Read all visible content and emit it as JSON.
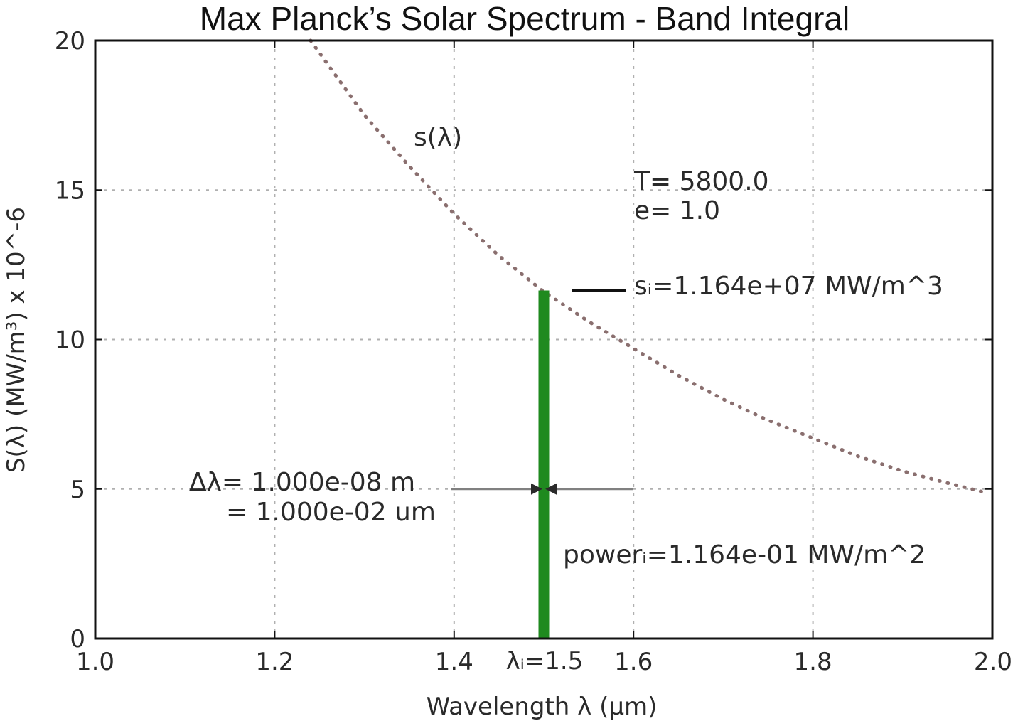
{
  "title": "Max Planck’s Solar Spectrum - Band Integral",
  "colors": {
    "curve": "#8a6f6f",
    "band": "#1f8a1f",
    "arrow": "#808080",
    "grid": "#b0b0b0"
  },
  "chart_data": {
    "type": "line",
    "title": "Max Planck’s Solar Spectrum - Band Integral",
    "xlabel": "Wavelength λ (μm)",
    "ylabel": "S(λ) (MW/m³) x 10^-6",
    "xlim": [
      1.0,
      2.0
    ],
    "ylim": [
      0,
      20
    ],
    "x_ticks": [
      1.0,
      1.2,
      1.4,
      1.6,
      1.8,
      2.0
    ],
    "x_tick_labels": [
      "1.0",
      "1.2",
      "1.4",
      "1.6",
      "1.8",
      "2.0"
    ],
    "y_ticks": [
      0,
      5,
      10,
      15,
      20
    ],
    "y_tick_labels": [
      "0",
      "5",
      "10",
      "15",
      "20"
    ],
    "grid": true,
    "temperature_K": 5800.0,
    "emissivity": 1.0,
    "series": [
      {
        "label": "s(λ)",
        "style": "dotted",
        "x": [
          1.24,
          1.3,
          1.35,
          1.4,
          1.45,
          1.5,
          1.55,
          1.6,
          1.65,
          1.7,
          1.75,
          1.8,
          1.85,
          1.9,
          1.95,
          1.99
        ],
        "y": [
          20.0,
          17.5,
          15.8,
          14.2,
          12.8,
          11.6,
          10.6,
          9.7,
          8.8,
          8.0,
          7.3,
          6.7,
          6.1,
          5.6,
          5.2,
          4.9
        ]
      }
    ],
    "band": {
      "x": 1.5,
      "y_top": 11.64
    },
    "arrow_y": 5,
    "annotations": {
      "curve_label": "s(λ)",
      "temperature": "T= 5800.0",
      "emissivity": "e= 1.0",
      "s_value": "sᵢ=1.164e+07  MW/m^3",
      "delta_m": "Δλ= 1.000e-08  m",
      "delta_um": "= 1.000e-02  um",
      "power": "powerᵢ=1.164e-01  MW/m^2",
      "lambda_label": "λᵢ=1.5"
    }
  }
}
